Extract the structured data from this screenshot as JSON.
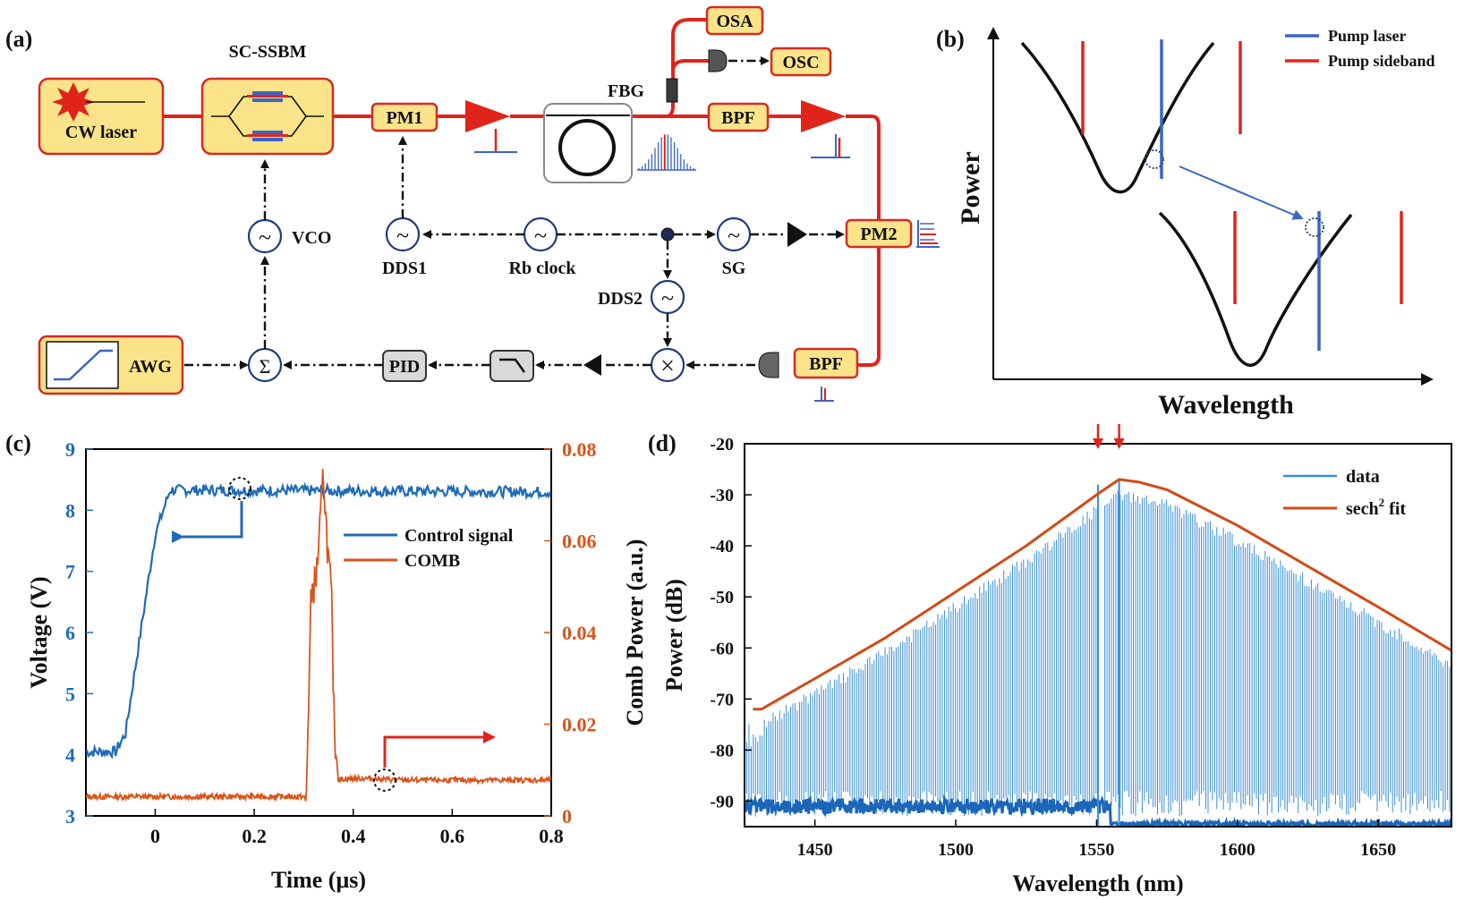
{
  "panels": {
    "a": "(a)",
    "b": "(b)",
    "c": "(c)",
    "d": "(d)"
  },
  "setup": {
    "cw_laser": "CW laser",
    "modulator": "SC-SSBM",
    "pm1": "PM1",
    "pm2": "PM2",
    "fbg": "FBG",
    "osa": "OSA",
    "osc": "OSC",
    "bpf1": "BPF",
    "bpf2": "BPF",
    "vco": "VCO",
    "dds1": "DDS1",
    "dds2": "DDS2",
    "rb": "Rb clock",
    "sg": "SG",
    "awg": "AWG",
    "pid": "PID",
    "sum": "Σ",
    "mixer": "×",
    "osc_symbol": "~"
  },
  "schematic_b": {
    "ylabel": "Power",
    "xlabel": "Wavelength",
    "legend": [
      {
        "label": "Pump laser",
        "color": "#3a66c4"
      },
      {
        "label": "Pump sideband",
        "color": "#e0241b"
      }
    ]
  },
  "chart_data": [
    {
      "type": "line",
      "panel": "c",
      "xlabel": "Time (μs)",
      "ylabel_left": "Voltage (V)",
      "ylabel_right": "Comb Power (a.u.)",
      "xlim": [
        -0.14,
        0.8
      ],
      "ylim_left": [
        3,
        9
      ],
      "ylim_right": [
        0,
        0.08
      ],
      "xticks": [
        "0",
        "0.2",
        "0.4",
        "0.6",
        "0.8"
      ],
      "yticks_left": [
        "3",
        "4",
        "5",
        "6",
        "7",
        "8",
        "9"
      ],
      "yticks_right": [
        "0",
        "0.02",
        "0.04",
        "0.06",
        "0.08"
      ],
      "colors": {
        "left": "#1f6bb8",
        "right": "#d9541a"
      },
      "legend": [
        "Control signal",
        "COMB"
      ],
      "series": [
        {
          "name": "Control signal",
          "axis": "left",
          "x": [
            -0.14,
            -0.08,
            -0.06,
            0.0,
            0.03,
            0.8
          ],
          "y": [
            4.05,
            4.05,
            4.35,
            7.6,
            8.33,
            8.3
          ]
        },
        {
          "name": "COMB",
          "axis": "right",
          "x": [
            -0.14,
            0.3,
            0.305,
            0.315,
            0.325,
            0.333,
            0.34,
            0.348,
            0.356,
            0.362,
            0.37,
            0.42,
            0.5,
            0.8
          ],
          "y": [
            0.0042,
            0.0042,
            0.003,
            0.048,
            0.052,
            0.063,
            0.075,
            0.058,
            0.048,
            0.018,
            0.008,
            0.0082,
            0.0078,
            0.0078
          ]
        }
      ]
    },
    {
      "type": "line",
      "panel": "d",
      "xlabel": "Wavelength (nm)",
      "ylabel": "Power (dB)",
      "xlim": [
        1425,
        1676
      ],
      "ylim": [
        -95,
        -20
      ],
      "xticks": [
        "1450",
        "1500",
        "1550",
        "1600",
        "1650"
      ],
      "yticks": [
        "-20",
        "-30",
        "-40",
        "-50",
        "-60",
        "-70",
        "-80",
        "-90"
      ],
      "legend": [
        "data",
        "sech² fit"
      ],
      "legend_text": {
        "data": "data",
        "fit_base": "sech",
        "fit_sup": "2",
        "fit_tail": " fit"
      },
      "colors": {
        "data": "#3a8fd6",
        "fit": "#d24a16",
        "arrow": "#e0241b"
      },
      "series": [
        {
          "name": "sech² fit",
          "x": [
            1428,
            1431,
            1450,
            1475,
            1500,
            1525,
            1540,
            1550,
            1558,
            1565,
            1575,
            1600,
            1625,
            1650,
            1676
          ],
          "y": [
            -72,
            -72,
            -66,
            -58,
            -49,
            -40,
            -34,
            -30,
            -27,
            -27.5,
            -29,
            -36,
            -44,
            -52,
            -60.5
          ]
        },
        {
          "name": "data",
          "comb_envelope_offset_db": -3,
          "noise_floor_db": -90,
          "pump_wavelengths": [
            1550.5,
            1558
          ]
        }
      ]
    }
  ]
}
